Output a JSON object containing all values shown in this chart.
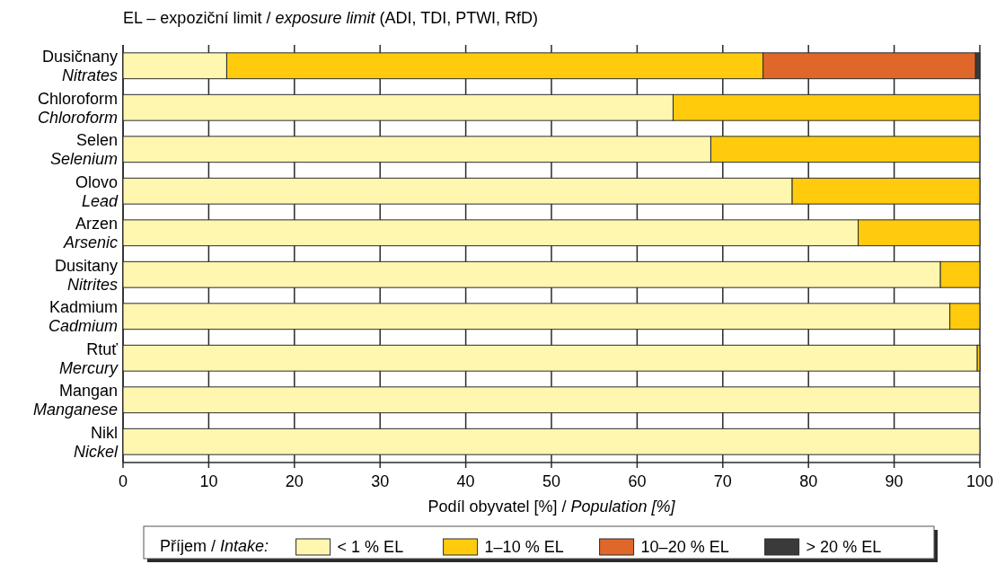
{
  "chart_data": {
    "type": "bar",
    "orientation": "horizontal",
    "stacked": true,
    "title": "EL – expoziční limit / exposure limit (ADI, TDI, PTWI, RfD)",
    "xlabel": "Podíl obyvatel [%] / Population [%]",
    "legend_title": "Příjem / Intake:",
    "categories": [
      "Dusičnany\nNitrates",
      "Chloroform\nChloroform",
      "Selen\nSelenium",
      "Olovo\nLead",
      "Arzen\nArsenic",
      "Dusitany\nNitrites",
      "Kadmium\nCadmium",
      "Rtuť\nMercury",
      "Mangan\nManganese",
      "Nikl\nNickel"
    ],
    "series": [
      {
        "name": "< 1 % EL",
        "color": "#fff6b0",
        "values": [
          12.1,
          64.2,
          68.6,
          78.1,
          85.8,
          95.4,
          96.5,
          99.7,
          100,
          100
        ]
      },
      {
        "name": "1–10 % EL",
        "color": "#ffcb0c",
        "values": [
          62.6,
          35.8,
          31.4,
          21.9,
          14.2,
          4.6,
          3.5,
          0.3,
          0,
          0
        ]
      },
      {
        "name": "10–20 % EL",
        "color": "#e0672a",
        "values": [
          24.8,
          0,
          0,
          0,
          0,
          0,
          0,
          0,
          0,
          0
        ]
      },
      {
        "name": "> 20 % EL",
        "color": "#3a3a3a",
        "values": [
          0.5,
          0,
          0,
          0,
          0,
          0,
          0,
          0,
          0,
          0
        ]
      }
    ],
    "xlim": [
      0,
      100
    ],
    "xticks": [
      0,
      10,
      20,
      30,
      40,
      50,
      60,
      70,
      80,
      90,
      100
    ],
    "grid": "x",
    "legend": "bottom"
  }
}
